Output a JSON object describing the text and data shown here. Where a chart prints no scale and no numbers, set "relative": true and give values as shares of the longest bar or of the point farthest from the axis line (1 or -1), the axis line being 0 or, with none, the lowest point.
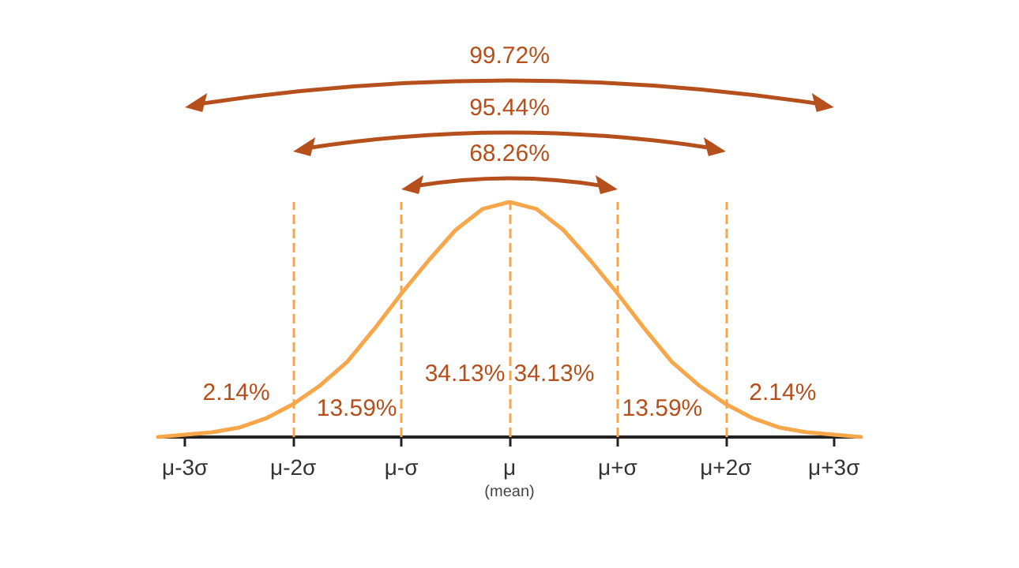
{
  "chart_data": {
    "type": "line",
    "relative": true,
    "categories": [
      null,
      "μ-3σ",
      null,
      null,
      null,
      "μ-2σ",
      null,
      null,
      null,
      "μ-σ",
      null,
      null,
      null,
      "μ\n(mean)",
      null,
      null,
      null,
      "μ+σ",
      null,
      null,
      null,
      "μ+2σ",
      null,
      null,
      null,
      "μ+3σ",
      null
    ],
    "values": [
      0,
      0.01,
      0.02,
      0.04,
      0.08,
      0.14,
      0.22,
      0.32,
      0.46,
      0.61,
      0.75,
      0.88,
      0.97,
      1,
      0.97,
      0.88,
      0.75,
      0.61,
      0.46,
      0.32,
      0.22,
      0.14,
      0.08,
      0.04,
      0.02,
      0.01,
      0
    ],
    "color": "#f7a64a",
    "marker": "none",
    "line_style": "solid",
    "grid": false,
    "ref_lines": [
      {
        "axis": "x",
        "value": "μ-2σ",
        "color": "#f7a64a",
        "line_style": "dashed"
      },
      {
        "axis": "x",
        "value": "μ-σ",
        "color": "#f7a64a",
        "line_style": "dashed"
      },
      {
        "axis": "x",
        "value": "μ\n(mean)",
        "color": "#f7a64a",
        "line_style": "dashed"
      },
      {
        "axis": "x",
        "value": "μ+σ",
        "color": "#f7a64a",
        "line_style": "dashed"
      },
      {
        "axis": "x",
        "value": "μ+2σ",
        "color": "#f7a64a",
        "line_style": "dashed"
      }
    ],
    "annotations": [
      "2.14%",
      "13.59%",
      "34.13%",
      "34.13%",
      "13.59%",
      "2.14%",
      "68.26%",
      "95.44%",
      "99.72%"
    ]
  }
}
